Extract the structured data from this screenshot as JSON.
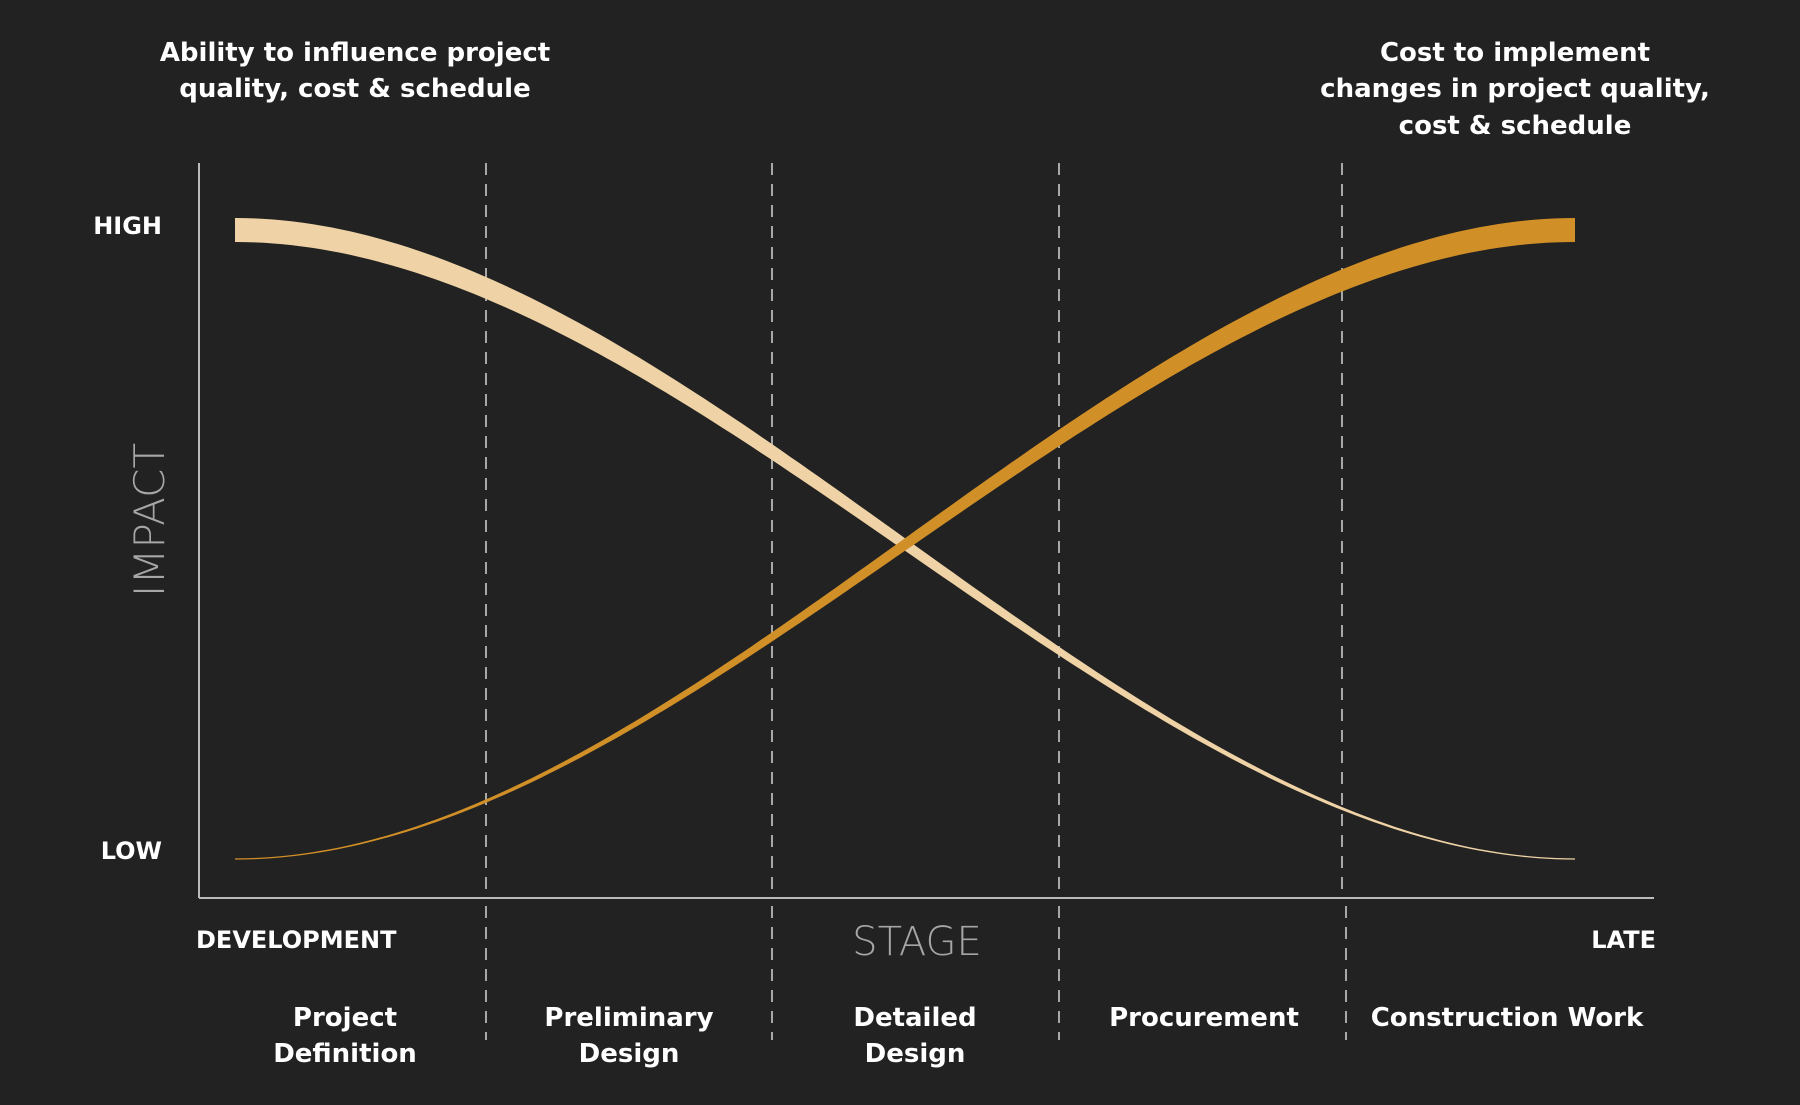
{
  "title_left": [
    "Ability to influence project",
    "quality, cost & schedule"
  ],
  "title_right": [
    "Cost to implement",
    "changes in project quality,",
    "cost & schedule"
  ],
  "y_axis": {
    "label": "IMPACT",
    "high_label": "HIGH",
    "low_label": "LOW"
  },
  "x_axis": {
    "label": "STAGE",
    "start_label": "DEVELOPMENT",
    "end_label": "LATE"
  },
  "stages": [
    {
      "lines": [
        "Project",
        "Definition"
      ]
    },
    {
      "lines": [
        "Preliminary",
        "Design"
      ]
    },
    {
      "lines": [
        "Detailed",
        "Design"
      ]
    },
    {
      "lines": [
        "Procurement"
      ]
    },
    {
      "lines": [
        "Construction Work"
      ]
    }
  ],
  "curves": [
    {
      "name": "influence",
      "direction": "decreasing",
      "color": "#efd3a6"
    },
    {
      "name": "cost_of_change",
      "direction": "increasing",
      "color": "#d18f27"
    }
  ],
  "colors": {
    "background": "#222222",
    "axis": "#bbbbbb",
    "divider": "#a8a8a8",
    "text": "#ffffff",
    "muted_text": "#a6a6a6"
  }
}
